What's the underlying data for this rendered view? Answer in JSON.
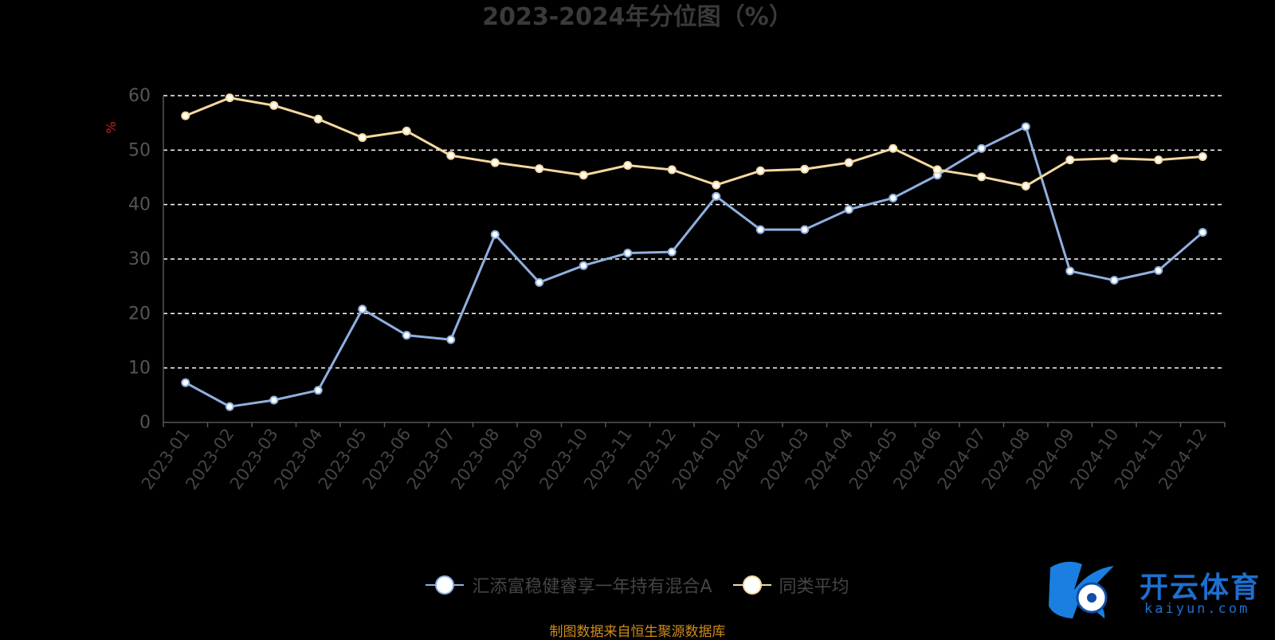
{
  "title": "2023-2024年分位图（%）",
  "chart_data": {
    "type": "line",
    "title": "2023-2024年分位图（%）",
    "ylabel": "%",
    "ylim": [
      0,
      60
    ],
    "yticks": [
      0,
      10,
      20,
      30,
      40,
      50,
      60
    ],
    "grid": "horizontal-dashed",
    "legend_position": "bottom",
    "categories": [
      "2023-01",
      "2023-02",
      "2023-03",
      "2023-04",
      "2023-05",
      "2023-06",
      "2023-07",
      "2023-08",
      "2023-09",
      "2023-10",
      "2023-11",
      "2023-12",
      "2024-01",
      "2024-02",
      "2024-03",
      "2024-04",
      "2024-05",
      "2024-06",
      "2024-07",
      "2024-08",
      "2024-09",
      "2024-10",
      "2024-11",
      "2024-12"
    ],
    "series": [
      {
        "name": "汇添富稳健睿享一年持有混合A",
        "color": "#8fb0e0",
        "values": [
          7.3,
          2.9,
          4.1,
          5.9,
          20.8,
          16.0,
          15.2,
          34.5,
          25.7,
          28.8,
          31.1,
          31.3,
          41.5,
          35.4,
          35.4,
          39.1,
          41.2,
          45.4,
          50.3,
          54.3,
          27.8,
          26.1,
          27.9,
          34.9
        ]
      },
      {
        "name": "同类平均",
        "color": "#f5d9a0",
        "values": [
          56.3,
          59.6,
          58.2,
          55.7,
          52.3,
          53.5,
          49.0,
          47.7,
          46.6,
          45.4,
          47.2,
          46.4,
          43.6,
          46.2,
          46.5,
          47.7,
          50.3,
          46.4,
          45.1,
          43.4,
          48.2,
          48.5,
          48.2,
          48.8
        ]
      }
    ]
  },
  "source_text": "制图数据来自恒生聚源数据库",
  "watermark": {
    "name": "开云体育",
    "sub": "kaiyun.com"
  }
}
